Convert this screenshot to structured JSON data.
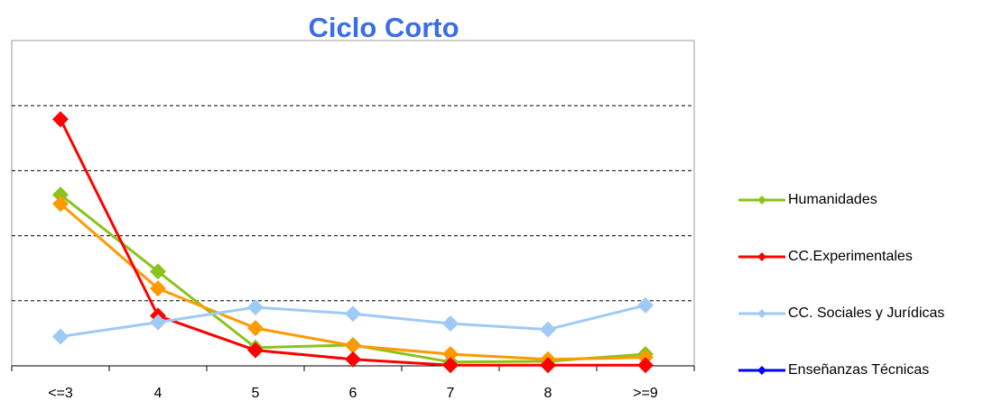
{
  "chart_data": {
    "type": "line",
    "title": "Ciclo Corto",
    "categories": [
      "<=3",
      "4",
      "5",
      "6",
      "7",
      "8",
      ">=9"
    ],
    "series": [
      {
        "name": "Humanidades",
        "color": "#8cc21c",
        "values": [
          2.63,
          1.45,
          0.28,
          0.32,
          0.06,
          0.07,
          0.18
        ]
      },
      {
        "color": "#ff9900",
        "values": [
          2.49,
          1.19,
          0.58,
          0.31,
          0.18,
          0.1,
          0.13
        ]
      },
      {
        "name": "CC.Experimentales",
        "color": "#ff0000",
        "values": [
          3.79,
          0.77,
          0.24,
          0.1,
          0.01,
          0.01,
          0.01
        ]
      },
      {
        "name": "CC. Sociales y Jurídicas",
        "color": "#9fcaf5",
        "values": [
          0.45,
          0.67,
          0.9,
          0.8,
          0.65,
          0.56,
          0.93
        ]
      },
      {
        "name": "Enseñanzas Técnicas",
        "color": "#0000ff",
        "values": [
          null,
          null,
          null,
          null,
          null,
          null,
          null
        ]
      }
    ],
    "ylim": [
      0,
      5
    ],
    "yticks": [
      0,
      1,
      2,
      3,
      4,
      5
    ],
    "grid": true,
    "legend": "right"
  }
}
